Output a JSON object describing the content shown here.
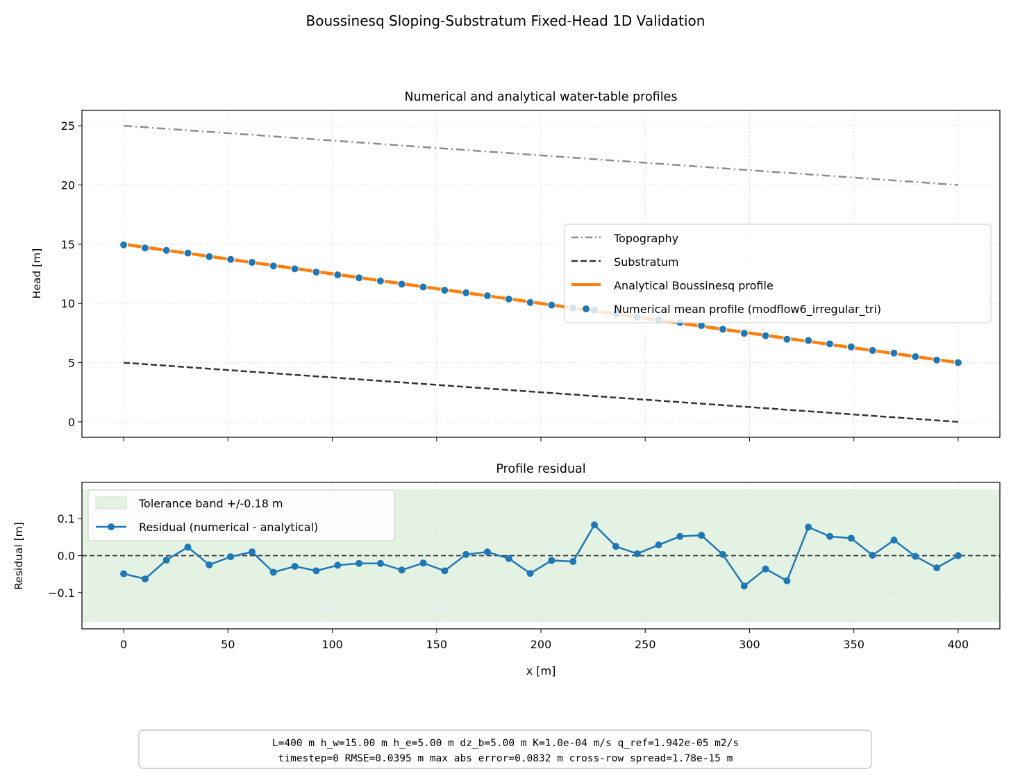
{
  "figure": {
    "suptitle": "Boussinesq Sloping-Substratum Fixed-Head 1D Validation",
    "info_line1": "L=400 m   h_w=15.00 m   h_e=5.00 m   dz_b=5.00 m   K=1.0e-04 m/s   q_ref=1.942e-05 m2/s",
    "info_line2": "timestep=0   RMSE=0.0395 m   max abs error=0.0832 m   cross-row spread=1.78e-15 m"
  },
  "colors": {
    "topography": "#8c8c8c",
    "substratum": "#333333",
    "analytical": "#ff7f0e",
    "numerical": "#1f77b4",
    "tolerance_band": "#e3f2e3",
    "grid": "#dddddd"
  },
  "chart_data": [
    {
      "type": "line",
      "title": "Numerical and analytical water-table profiles",
      "xlabel": "",
      "ylabel": "Head [m]",
      "xlim": [
        -20,
        420
      ],
      "ylim": [
        -1.3,
        26.3
      ],
      "xticks": [
        0,
        50,
        100,
        150,
        200,
        250,
        300,
        350,
        400
      ],
      "yticks": [
        0,
        5,
        10,
        15,
        20,
        25
      ],
      "grid": true,
      "legend_position": "center-right",
      "series": [
        {
          "name": "Topography",
          "style": "dashdot",
          "x": [
            0,
            400
          ],
          "y": [
            25,
            20
          ]
        },
        {
          "name": "Substratum",
          "style": "dashed",
          "x": [
            0,
            400
          ],
          "y": [
            5,
            0
          ]
        },
        {
          "name": "Analytical Boussinesq profile",
          "style": "solid",
          "x": [
            0,
            400
          ],
          "y": [
            15,
            5
          ]
        },
        {
          "name": "Numerical mean profile (modflow6_irregular_tri)",
          "style": "markers",
          "x": [
            0,
            10.26,
            20.51,
            30.77,
            41.03,
            51.28,
            61.54,
            71.79,
            82.05,
            92.31,
            102.56,
            112.82,
            123.08,
            133.33,
            143.59,
            153.85,
            164.1,
            174.36,
            184.62,
            194.87,
            205.13,
            215.38,
            225.64,
            235.9,
            246.15,
            256.41,
            266.67,
            276.92,
            287.18,
            297.44,
            307.69,
            317.95,
            328.21,
            338.46,
            348.72,
            358.97,
            369.23,
            379.49,
            389.74,
            400
          ],
          "y": [
            14.95,
            14.68,
            14.48,
            14.25,
            13.95,
            13.72,
            13.47,
            13.16,
            12.92,
            12.65,
            12.41,
            12.16,
            11.9,
            11.63,
            11.39,
            11.11,
            10.9,
            10.65,
            10.37,
            10.08,
            9.86,
            9.6,
            9.44,
            9.13,
            8.85,
            8.62,
            8.39,
            8.13,
            7.82,
            7.48,
            7.27,
            6.98,
            6.87,
            6.59,
            6.33,
            6.03,
            5.81,
            5.51,
            5.22,
            5.0
          ]
        }
      ]
    },
    {
      "type": "line",
      "title": "Profile residual",
      "xlabel": "x [m]",
      "ylabel": "Residual [m]",
      "xlim": [
        -20,
        420
      ],
      "ylim": [
        -0.198,
        0.198
      ],
      "xticks": [
        0,
        50,
        100,
        150,
        200,
        250,
        300,
        350,
        400
      ],
      "yticks": [
        -0.1,
        0.0,
        0.1
      ],
      "ytick_labels": [
        "−0.1",
        "0.0",
        "0.1"
      ],
      "grid": true,
      "legend_position": "top-left",
      "tolerance_band": {
        "name": "Tolerance band +/-0.18 m",
        "lower": -0.18,
        "upper": 0.18
      },
      "zero_line": 0,
      "series": [
        {
          "name": "Residual (numerical - analytical)",
          "x": [
            0,
            10.26,
            20.51,
            30.77,
            41.03,
            51.28,
            61.54,
            71.79,
            82.05,
            92.31,
            102.56,
            112.82,
            123.08,
            133.33,
            143.59,
            153.85,
            164.1,
            174.36,
            184.62,
            194.87,
            205.13,
            215.38,
            225.64,
            235.9,
            246.15,
            256.41,
            266.67,
            276.92,
            287.18,
            297.44,
            307.69,
            317.95,
            328.21,
            338.46,
            348.72,
            358.97,
            369.23,
            379.49,
            389.74,
            400
          ],
          "y": [
            -0.049,
            -0.063,
            -0.012,
            0.023,
            -0.025,
            -0.003,
            0.01,
            -0.045,
            -0.029,
            -0.041,
            -0.026,
            -0.021,
            -0.021,
            -0.039,
            -0.02,
            -0.041,
            0.003,
            0.01,
            -0.008,
            -0.048,
            -0.013,
            -0.016,
            0.083,
            0.025,
            0.005,
            0.029,
            0.052,
            0.055,
            0.003,
            -0.082,
            -0.036,
            -0.068,
            0.077,
            0.052,
            0.047,
            0.001,
            0.042,
            -0.002,
            -0.033,
            0.0
          ]
        }
      ]
    }
  ]
}
